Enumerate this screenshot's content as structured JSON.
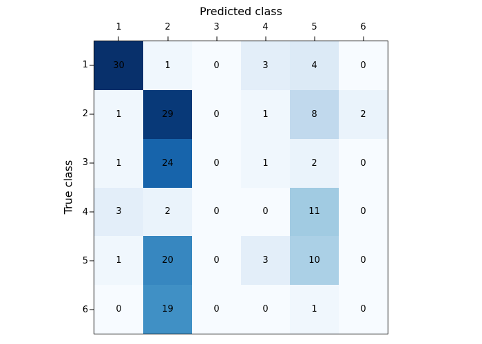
{
  "figure": {
    "background_color": "#ffffff",
    "axes_border_color": "#000000",
    "tick_color": "#000000",
    "cell_text_color": "#000000"
  },
  "chart_data": {
    "type": "heatmap",
    "title": "",
    "xlabel": "Predicted class",
    "ylabel": "True class",
    "x_tick_labels": [
      "1",
      "2",
      "3",
      "4",
      "5",
      "6"
    ],
    "y_tick_labels": [
      "1",
      "2",
      "3",
      "4",
      "5",
      "6"
    ],
    "matrix": [
      [
        30,
        1,
        0,
        3,
        4,
        0
      ],
      [
        1,
        29,
        0,
        1,
        8,
        2
      ],
      [
        1,
        24,
        0,
        1,
        2,
        0
      ],
      [
        3,
        2,
        0,
        0,
        11,
        0
      ],
      [
        1,
        20,
        0,
        3,
        10,
        0
      ],
      [
        0,
        19,
        0,
        0,
        1,
        0
      ]
    ],
    "colormap": "Blues",
    "vmin": 0,
    "vmax": 30,
    "value_colors": {
      "0": "#f7fbff",
      "1": "#f0f7fd",
      "2": "#eaf3fb",
      "3": "#e3eef9",
      "4": "#dceaf6",
      "8": "#c1d9ed",
      "10": "#abd0e6",
      "11": "#a1cbe2",
      "19": "#4090c5",
      "20": "#3787c0",
      "24": "#1764ab",
      "29": "#083978",
      "30": "#08306b"
    },
    "legend": "none",
    "grid": "off"
  }
}
